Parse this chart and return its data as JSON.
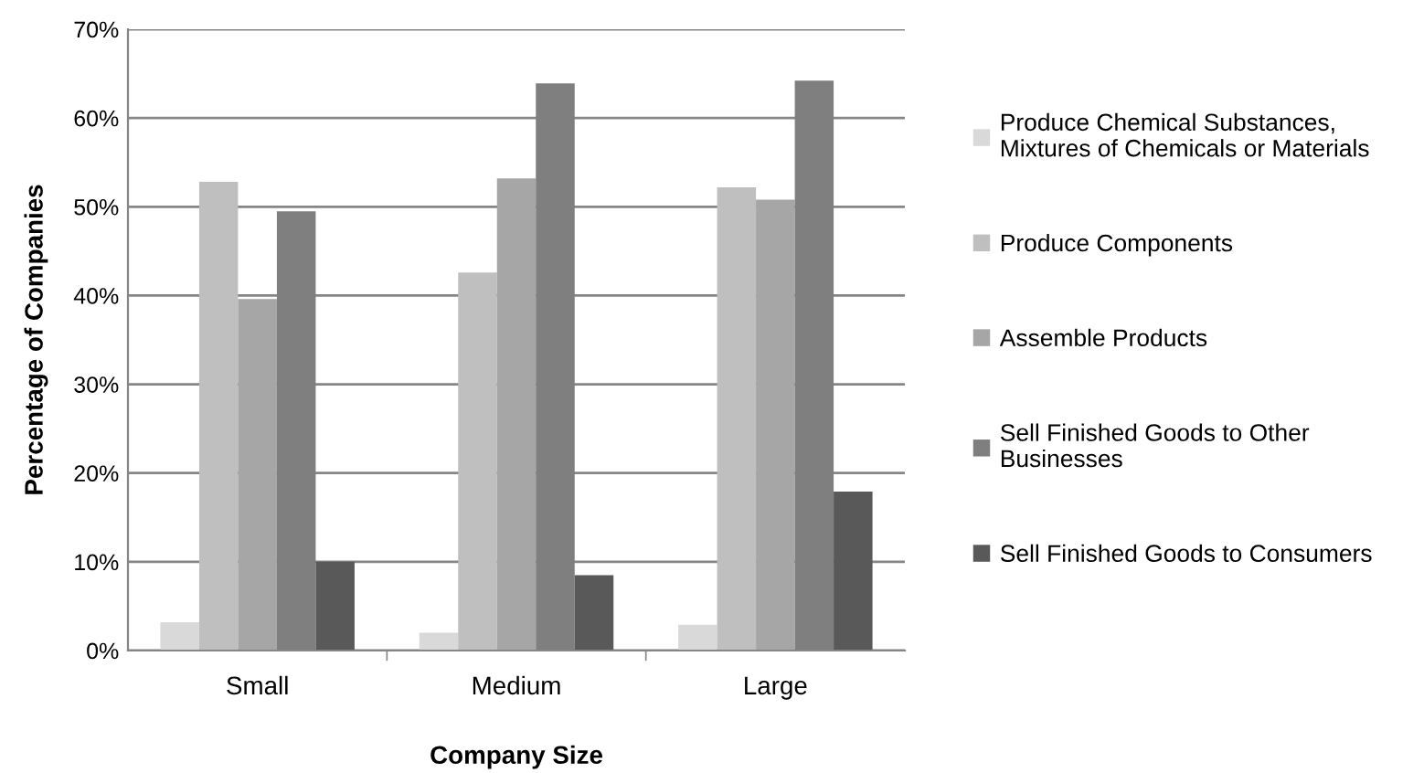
{
  "chart_data": {
    "type": "bar",
    "xlabel": "Company Size",
    "ylabel": "Percentage of Companies",
    "categories": [
      "Small",
      "Medium",
      "Large"
    ],
    "series": [
      {
        "name": "Produce Chemical Substances,\nMixtures of Chemicals or Materials",
        "color": "#d9d9d9",
        "values": [
          3.2,
          2.0,
          2.9
        ]
      },
      {
        "name": "Produce Components",
        "color": "#bfbfbf",
        "values": [
          52.8,
          42.6,
          52.2
        ]
      },
      {
        "name": "Assemble Products",
        "color": "#a6a6a6",
        "values": [
          39.6,
          53.2,
          50.8
        ]
      },
      {
        "name": "Sell Finished Goods to Other\nBusinesses",
        "color": "#7f7f7f",
        "values": [
          49.5,
          63.9,
          64.2
        ]
      },
      {
        "name": "Sell Finished Goods to Consumers",
        "color": "#595959",
        "values": [
          10.0,
          8.5,
          17.9
        ]
      }
    ],
    "ylim": [
      0,
      70
    ],
    "yticks": [
      {
        "value": 0,
        "label": "0%"
      },
      {
        "value": 10,
        "label": "10%"
      },
      {
        "value": 20,
        "label": "20%"
      },
      {
        "value": 30,
        "label": "30%"
      },
      {
        "value": 40,
        "label": "40%"
      },
      {
        "value": 50,
        "label": "50%"
      },
      {
        "value": 60,
        "label": "60%"
      },
      {
        "value": 70,
        "label": "70%"
      }
    ],
    "grid": "y",
    "legend": "right"
  }
}
